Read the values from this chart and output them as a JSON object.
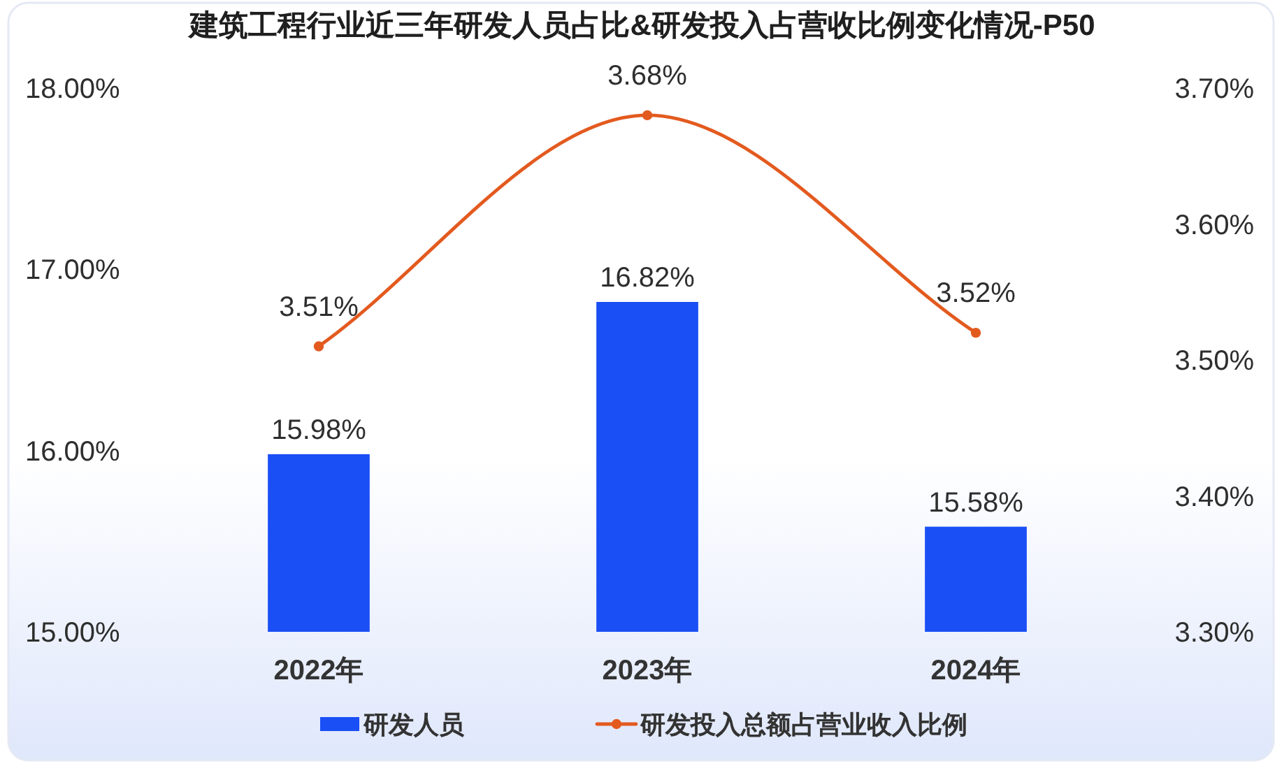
{
  "chart_data": {
    "type": "bar",
    "title": "建筑工程行业近三年研发人员占比&研发投入占营收比例变化情况-P50",
    "categories": [
      "2022年",
      "2023年",
      "2024年"
    ],
    "series": [
      {
        "name": "研发人员",
        "color": "#1a4ff5",
        "values": [
          15.98,
          16.82,
          15.58
        ],
        "value_labels": [
          "15.98%",
          "16.82%",
          "15.58%"
        ]
      },
      {
        "name": "研发投入总额占营业收入比例",
        "type": "line",
        "axis": "y2",
        "color": "#e35a1f",
        "values": [
          3.51,
          3.68,
          3.52
        ],
        "value_labels": [
          "3.51%",
          "3.68%",
          "3.52%"
        ]
      }
    ],
    "ylim": [
      15,
      18
    ],
    "yticks": [
      {
        "value": 15,
        "label": "15.00%"
      },
      {
        "value": 16,
        "label": "16.00%"
      },
      {
        "value": 17,
        "label": "17.00%"
      },
      {
        "value": 18,
        "label": "18.00%"
      }
    ],
    "y2lim": [
      3.3,
      3.7
    ],
    "y2ticks": [
      {
        "value": 3.3,
        "label": "3.30%"
      },
      {
        "value": 3.4,
        "label": "3.40%"
      },
      {
        "value": 3.5,
        "label": "3.50%"
      },
      {
        "value": 3.6,
        "label": "3.60%"
      },
      {
        "value": 3.7,
        "label": "3.70%"
      }
    ],
    "legend": "bottom",
    "marker": "circle",
    "line_style": "solid"
  }
}
